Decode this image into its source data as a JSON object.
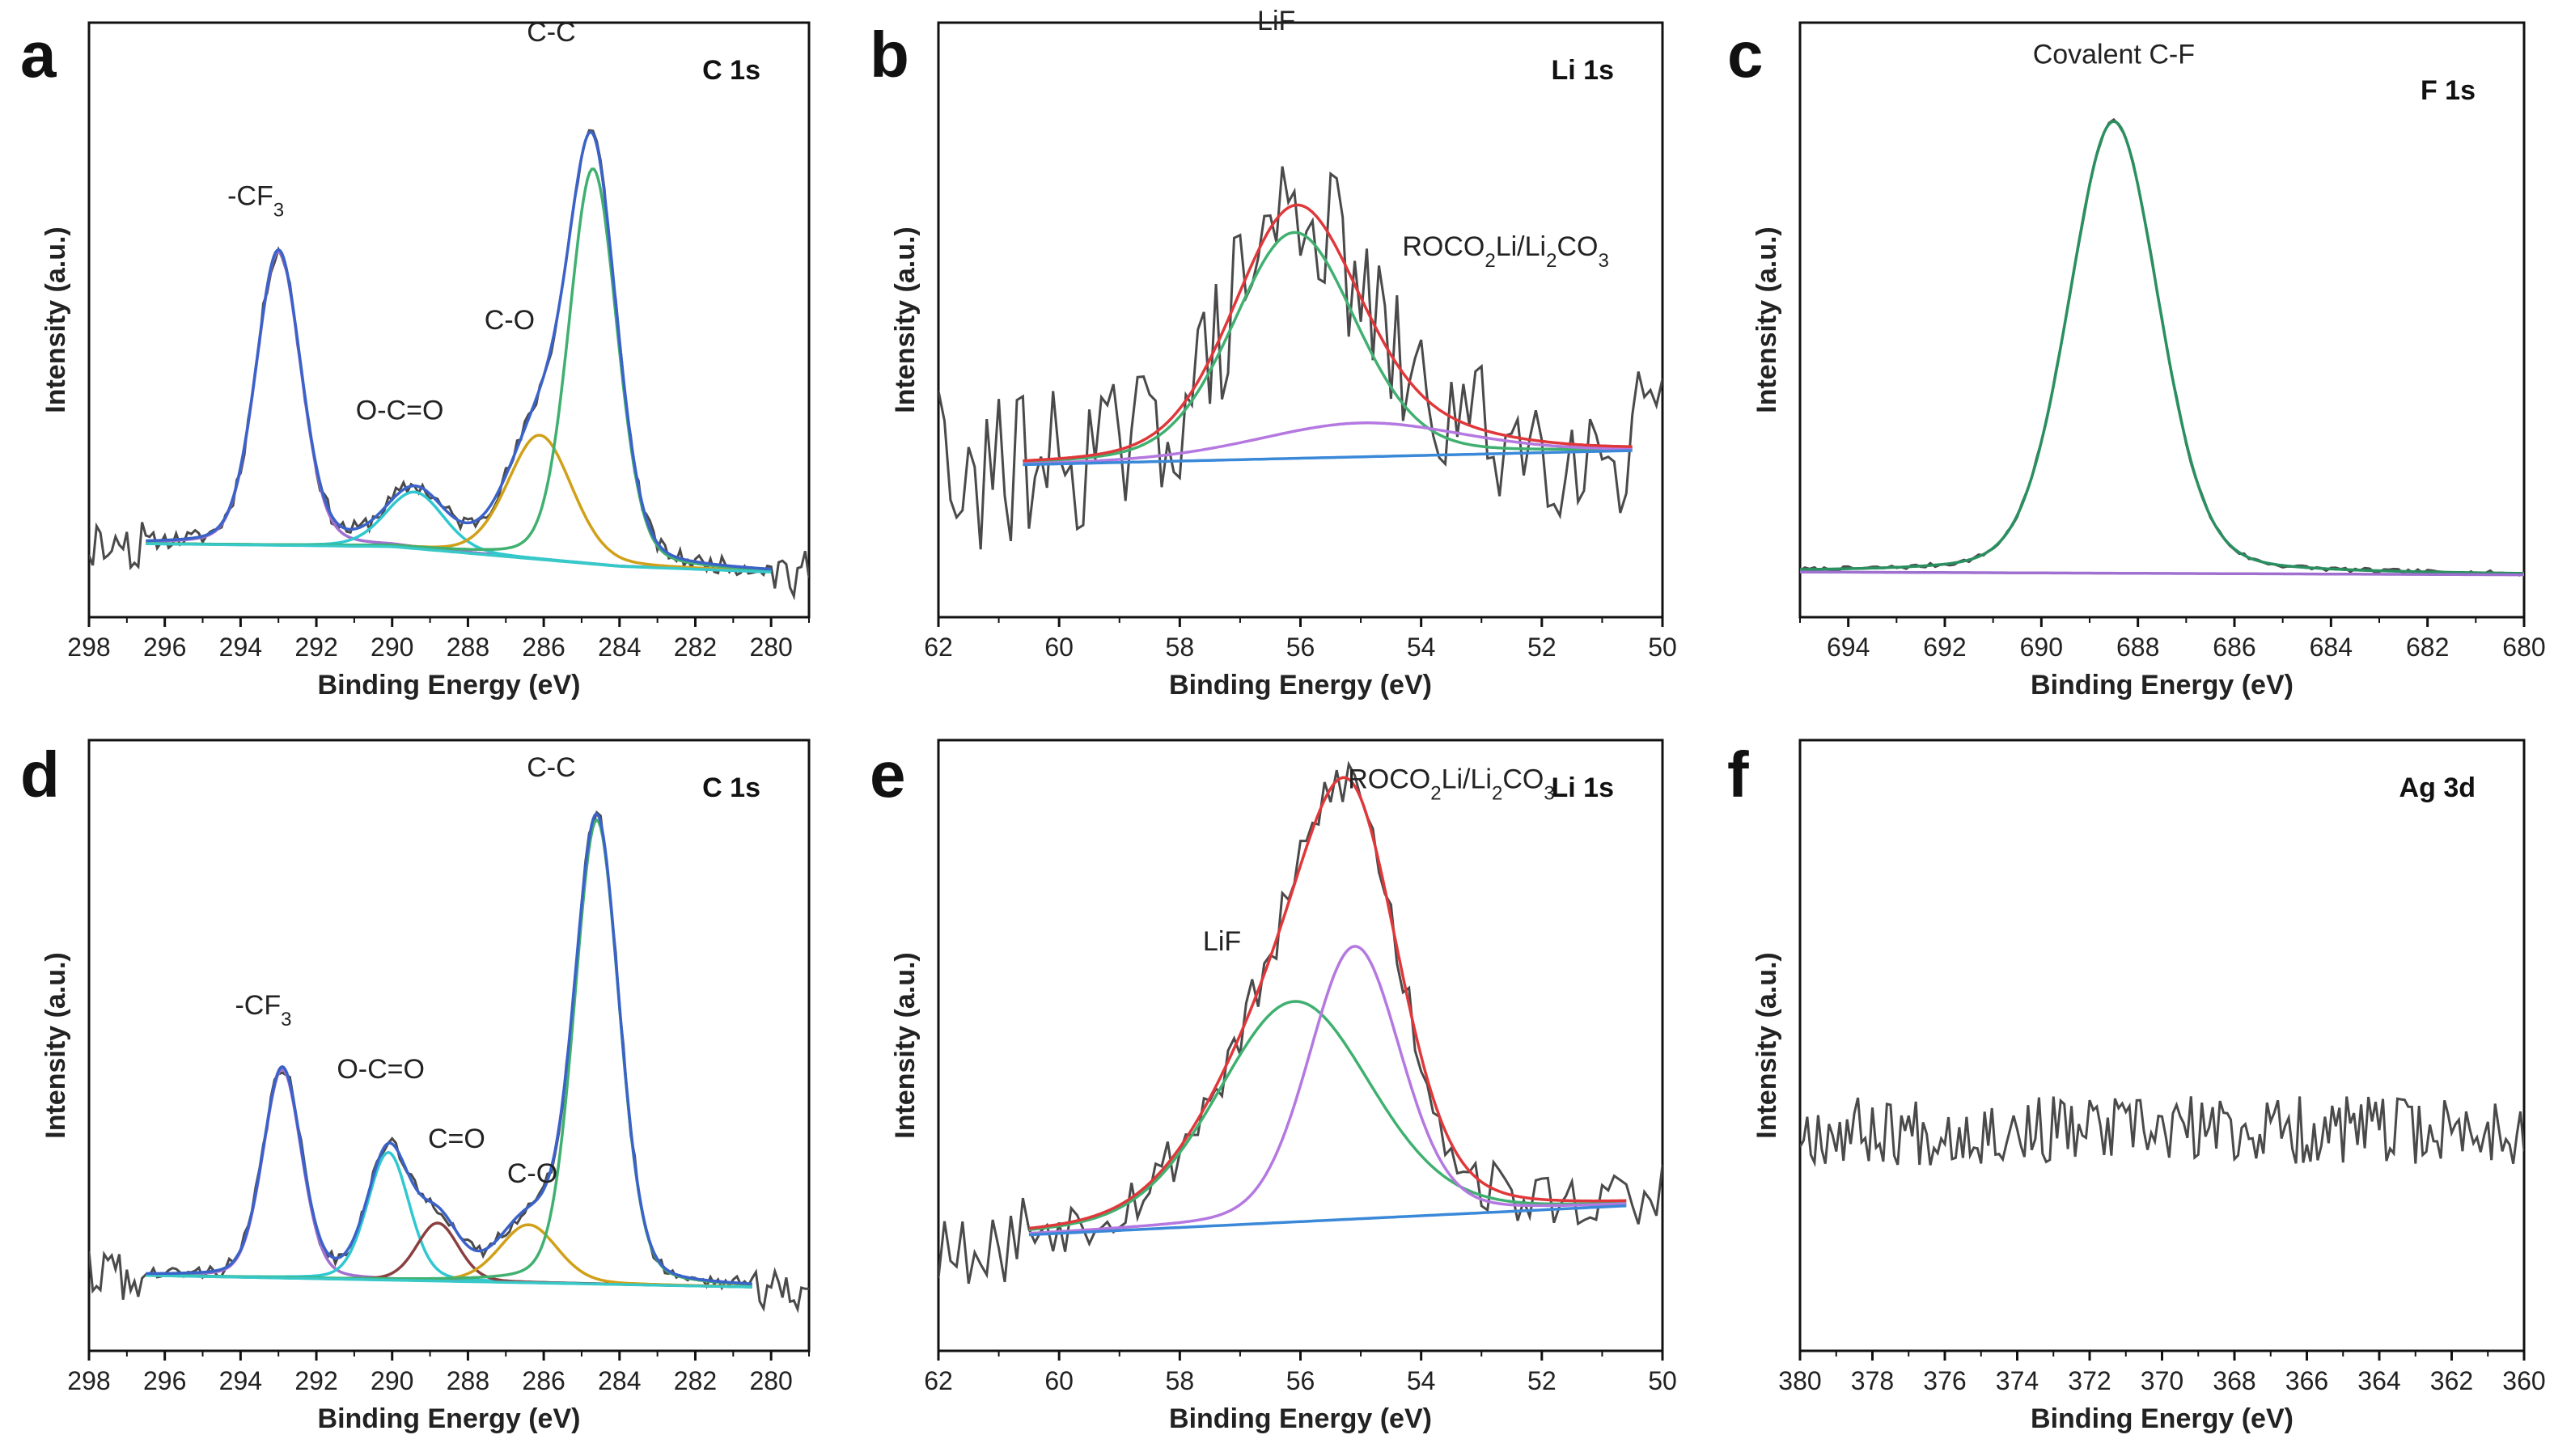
{
  "figure": {
    "colors": {
      "raw": "#4a4a4a",
      "envelope_c": "#3a62c8",
      "envelope_li": "#e0383a",
      "cf3": "#a070d0",
      "oco": "#30c8d0",
      "co": "#d0a018",
      "cc": "#40b070",
      "c_eq_o": "#8a4040",
      "bg_c": "#38c8c8",
      "bg_li": "#3a88d8",
      "fit_f": "#2a9060",
      "bg_f": "#a070d0",
      "lif": "#40b070",
      "roco": "#b478e0"
    }
  },
  "chart_data": [
    {
      "panel": "a",
      "type": "line",
      "corner_label": "C 1s",
      "xlabel": "Binding Energy (eV)",
      "ylabel": "Intensity (a.u.)",
      "xlim": [
        298,
        279
      ],
      "ylim": [
        0,
        1
      ],
      "xticks": [
        "298",
        "296",
        "294",
        "292",
        "290",
        "288",
        "286",
        "284",
        "282",
        "280"
      ],
      "raw": {
        "range": [
          298,
          279
        ],
        "step": 0.1,
        "noise": 0.015,
        "seed": 11,
        "tail": 0.03
      },
      "background": {
        "name": "bg",
        "x": [
          296.5,
          290,
          284,
          280
        ],
        "y": [
          0.13,
          0.125,
          0.09,
          0.08
        ]
      },
      "components": [
        {
          "name": "-CF3",
          "center": 293.0,
          "height": 0.52,
          "fwhm": 1.4
        },
        {
          "name": "O-C=O",
          "center": 289.4,
          "height": 0.1,
          "fwhm": 1.8
        },
        {
          "name": "C-O",
          "center": 286.1,
          "height": 0.22,
          "fwhm": 2.0
        },
        {
          "name": "C-C",
          "center": 284.7,
          "height": 0.7,
          "fwhm": 1.5
        }
      ],
      "labels": [
        {
          "text": "-CF",
          "sub": "3",
          "x": 293.6,
          "y": 0.73
        },
        {
          "text": "O-C=O",
          "x": 289.8,
          "y": 0.35
        },
        {
          "text": "C-O",
          "x": 286.9,
          "y": 0.51
        },
        {
          "text": "C-C",
          "x": 285.8,
          "y": 1.02
        }
      ]
    },
    {
      "panel": "b",
      "type": "line",
      "corner_label": "Li 1s",
      "xlabel": "Binding Energy (eV)",
      "ylabel": "Intensity (a.u.)",
      "xlim": [
        62,
        50
      ],
      "ylim": [
        0,
        1
      ],
      "xticks": [
        "62",
        "60",
        "58",
        "56",
        "54",
        "52",
        "50"
      ],
      "raw": {
        "range": [
          62,
          50
        ],
        "step": 0.1,
        "noise": 0.13,
        "seed": 29,
        "tail": 0.03
      },
      "background": {
        "name": "bg",
        "x": [
          60.6,
          50.5
        ],
        "y": [
          0.27,
          0.295
        ]
      },
      "components": [
        {
          "name": "LiF",
          "center": 56.1,
          "height": 0.4,
          "fwhm": 2.4
        },
        {
          "name": "ROCO2Li/Li2CO3",
          "center": 55.0,
          "height": 0.06,
          "fwhm": 4.0
        }
      ],
      "labels": [
        {
          "text": "LiF",
          "x": 56.4,
          "y": 1.04
        },
        {
          "text": "ROCO2Li/Li2CO3",
          "x": 52.6,
          "y": 0.64
        }
      ]
    },
    {
      "panel": "c",
      "type": "line",
      "corner_label": "F 1s",
      "xlabel": "Binding Energy (eV)",
      "ylabel": "Intensity (a.u.)",
      "xlim": [
        695,
        680
      ],
      "ylim": [
        0,
        1
      ],
      "xticks": [
        "694",
        "692",
        "690",
        "688",
        "686",
        "684",
        "682",
        "680"
      ],
      "raw": {
        "range": [
          695,
          680
        ],
        "step": 0.1,
        "noise": 0.004,
        "seed": 7,
        "tail": 0.0
      },
      "background": {
        "name": "bg",
        "x": [
          695,
          680
        ],
        "y": [
          0.08,
          0.075
        ]
      },
      "components": [
        {
          "name": "Covalent C-F",
          "center": 688.5,
          "height": 0.8,
          "fwhm": 2.2
        }
      ],
      "labels": [
        {
          "text": "Covalent C-F",
          "x": 688.5,
          "y": 0.98
        }
      ]
    },
    {
      "panel": "d",
      "type": "line",
      "corner_label": "C 1s",
      "xlabel": "Binding Energy (eV)",
      "ylabel": "Intensity (a.u.)",
      "xlim": [
        298,
        279
      ],
      "ylim": [
        0,
        1
      ],
      "xticks": [
        "298",
        "296",
        "294",
        "292",
        "290",
        "288",
        "286",
        "284",
        "282",
        "280"
      ],
      "raw": {
        "range": [
          298,
          279
        ],
        "step": 0.1,
        "noise": 0.012,
        "seed": 41,
        "tail": 0.03
      },
      "background": {
        "name": "bg",
        "x": [
          296.5,
          280.5
        ],
        "y": [
          0.13,
          0.11
        ]
      },
      "components": [
        {
          "name": "-CF3",
          "center": 292.9,
          "height": 0.36,
          "fwhm": 1.2
        },
        {
          "name": "O-C=O",
          "center": 290.1,
          "height": 0.22,
          "fwhm": 1.3
        },
        {
          "name": "C=O",
          "center": 288.8,
          "height": 0.1,
          "fwhm": 1.3
        },
        {
          "name": "C-O",
          "center": 286.4,
          "height": 0.1,
          "fwhm": 1.8
        },
        {
          "name": "C-C",
          "center": 284.6,
          "height": 0.8,
          "fwhm": 1.4
        }
      ],
      "labels": [
        {
          "text": "-CF",
          "sub": "3",
          "x": 293.4,
          "y": 0.58
        },
        {
          "text": "O-C=O",
          "x": 290.3,
          "y": 0.47
        },
        {
          "text": "C=O",
          "x": 288.3,
          "y": 0.35
        },
        {
          "text": "C-O",
          "x": 286.3,
          "y": 0.29
        },
        {
          "text": "C-C",
          "x": 285.8,
          "y": 0.99
        }
      ]
    },
    {
      "panel": "e",
      "type": "line",
      "corner_label": "Li 1s",
      "xlabel": "Binding Energy (eV)",
      "ylabel": "Intensity (a.u.)",
      "xlim": [
        62,
        50
      ],
      "ylim": [
        0,
        1
      ],
      "xticks": [
        "62",
        "60",
        "58",
        "56",
        "54",
        "52",
        "50"
      ],
      "raw": {
        "range": [
          62,
          50
        ],
        "step": 0.1,
        "noise": 0.05,
        "seed": 53,
        "tail": 0.04
      },
      "background": {
        "name": "bg",
        "x": [
          60.5,
          50.6
        ],
        "y": [
          0.2,
          0.25
        ]
      },
      "components": [
        {
          "name": "LiF",
          "center": 56.1,
          "height": 0.38,
          "fwhm": 3.0
        },
        {
          "name": "ROCO2Li/Li2CO3",
          "center": 55.1,
          "height": 0.47,
          "fwhm": 1.8
        }
      ],
      "labels": [
        {
          "text": "LiF",
          "x": 57.3,
          "y": 0.69
        },
        {
          "text": "ROCO2Li/Li2CO3",
          "x": 53.5,
          "y": 0.97
        }
      ]
    },
    {
      "panel": "f",
      "type": "line",
      "corner_label": "Ag 3d",
      "xlabel": "Binding Energy (eV)",
      "ylabel": "Intensity (a.u.)",
      "xlim": [
        380,
        360
      ],
      "ylim": [
        0,
        1
      ],
      "xticks": [
        "380",
        "378",
        "376",
        "374",
        "372",
        "370",
        "368",
        "366",
        "364",
        "362",
        "360"
      ],
      "raw": {
        "range": [
          380,
          360
        ],
        "step": 0.1,
        "noise": 0.06,
        "seed": 67,
        "tail": 0.0,
        "baseline": 0.38
      },
      "background": null,
      "components": [],
      "labels": []
    }
  ]
}
